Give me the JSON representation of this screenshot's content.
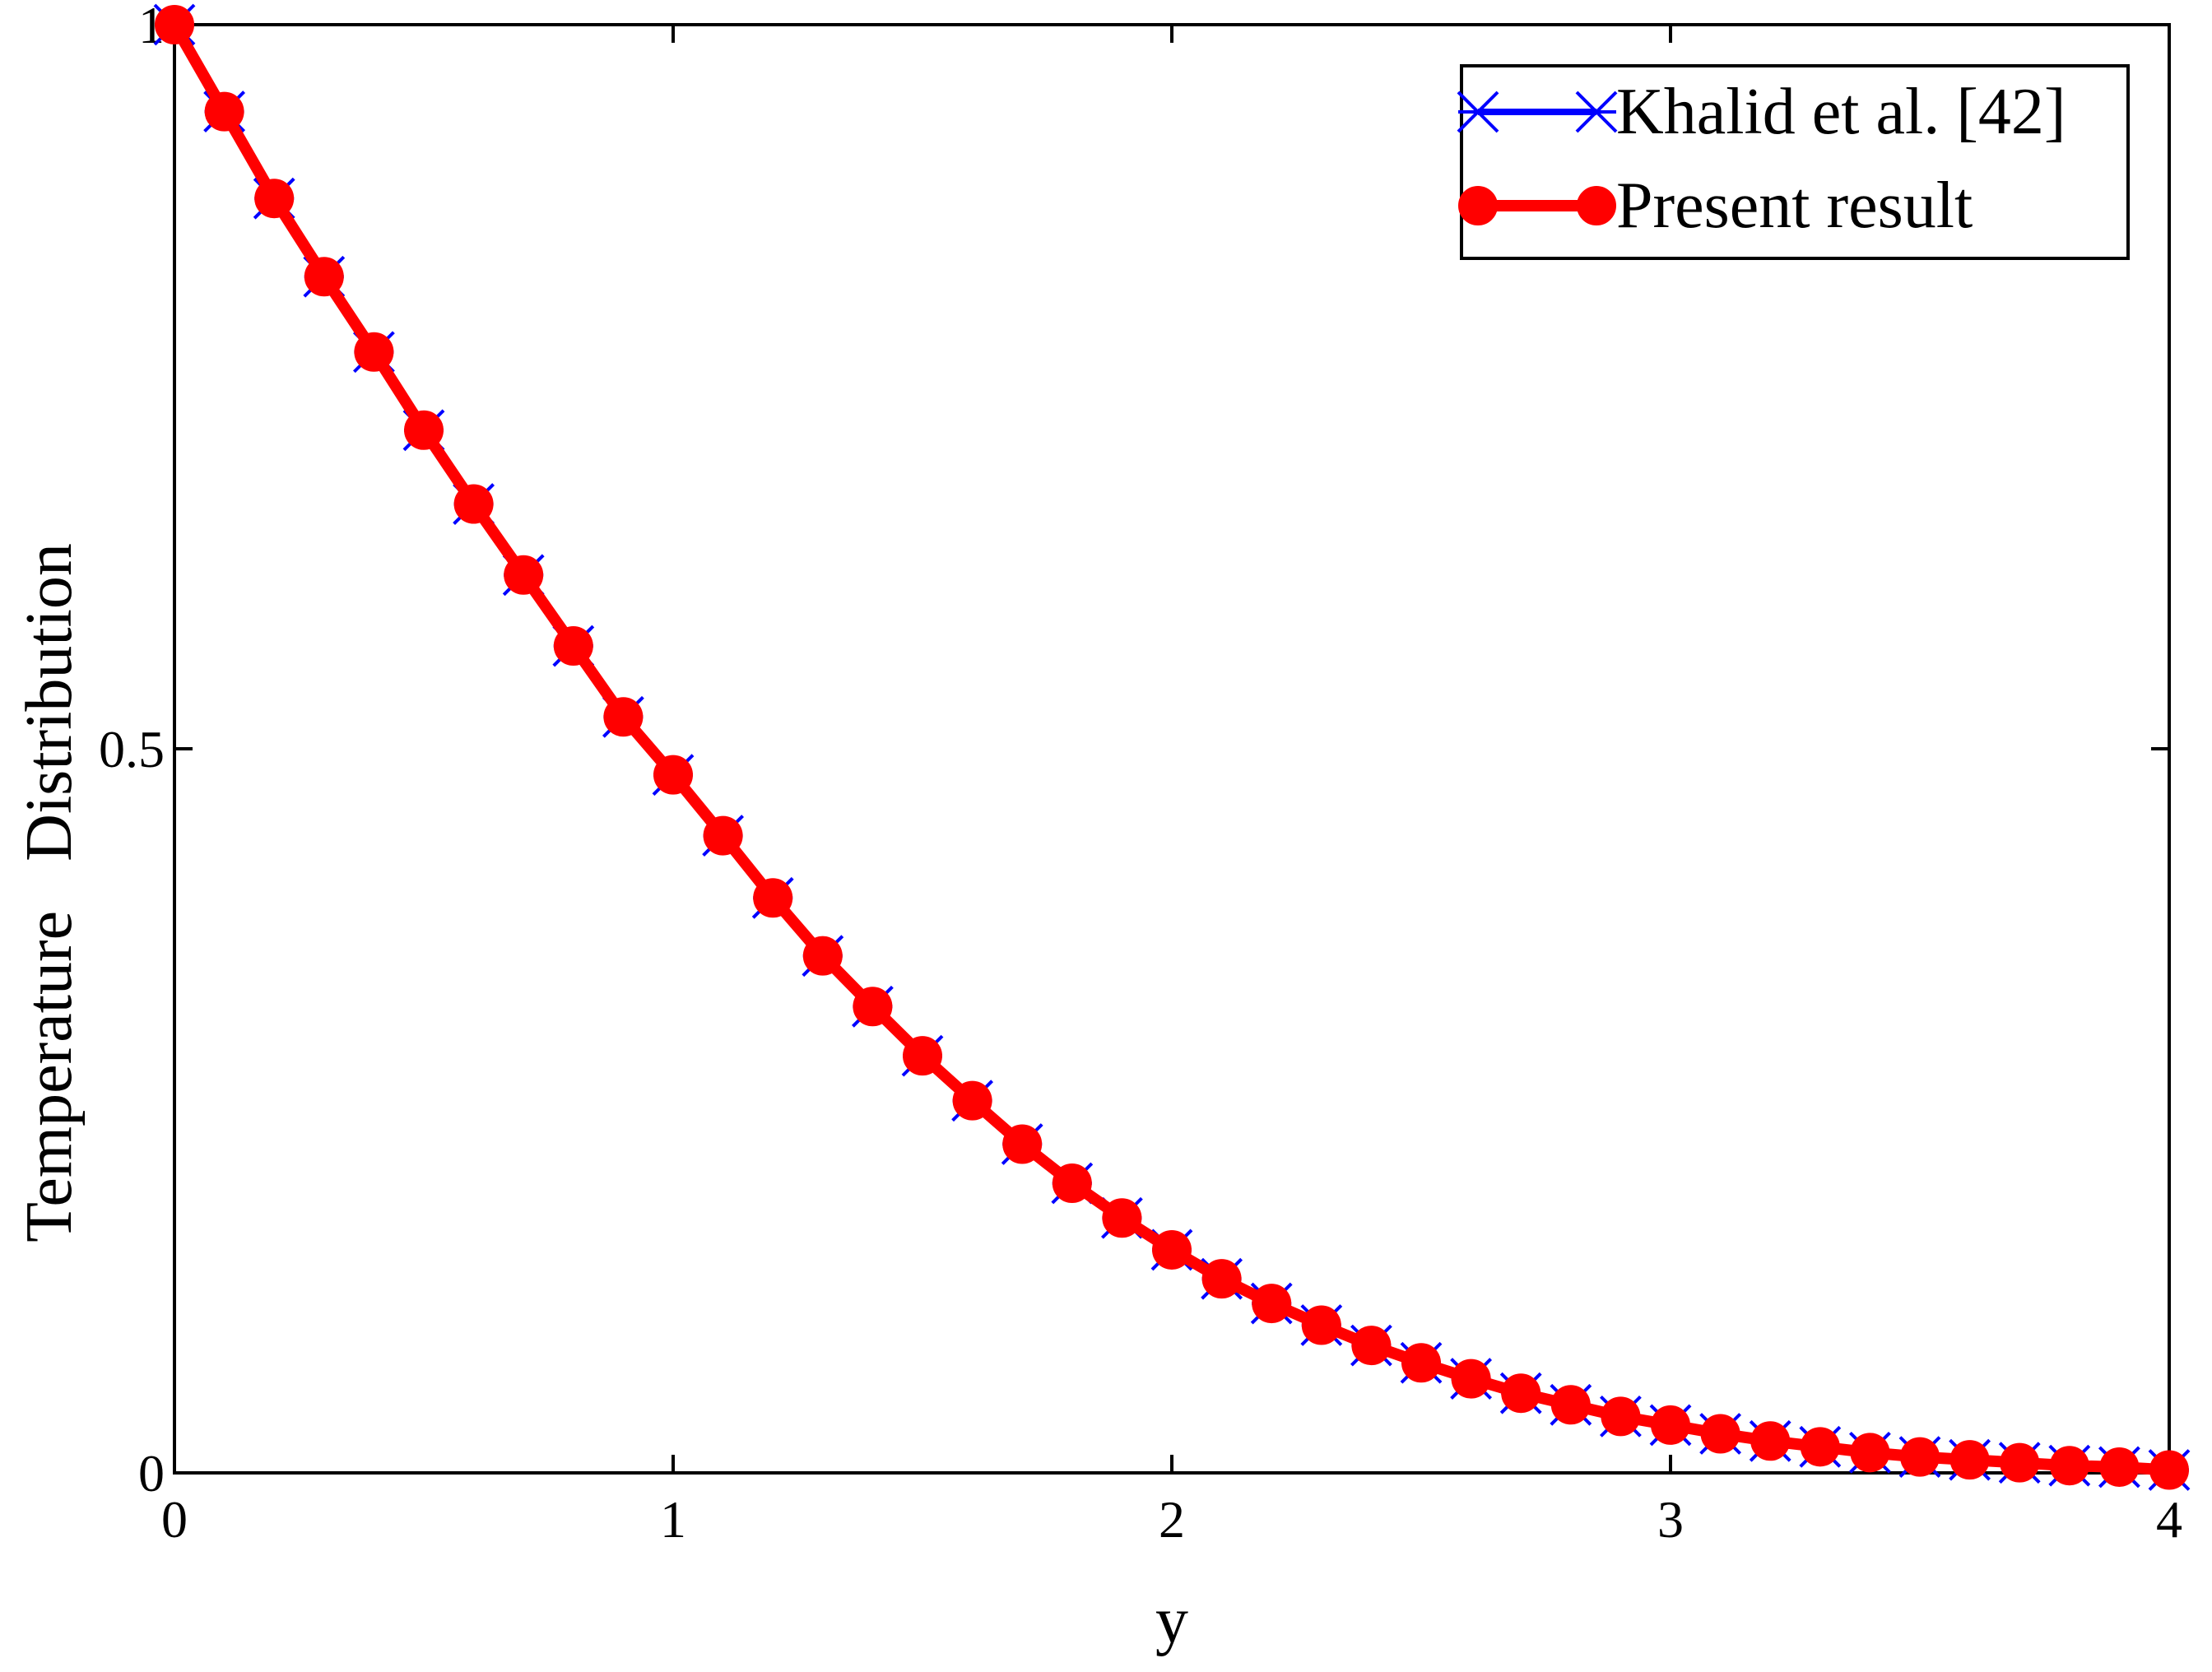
{
  "chart_data": {
    "type": "line",
    "title": "",
    "xlabel": "y",
    "ylabel": "Temperature   Distribution",
    "xlim": [
      0,
      4
    ],
    "ylim": [
      0,
      1
    ],
    "xticks": [
      0,
      1,
      2,
      3,
      4
    ],
    "xtick_labels": [
      "0",
      "1",
      "2",
      "3",
      "4"
    ],
    "yticks": [
      0,
      0.5,
      1
    ],
    "ytick_labels": [
      "0",
      "0.5",
      "1"
    ],
    "grid": false,
    "legend_position": "top-right",
    "x": [
      0,
      0.1,
      0.2,
      0.3,
      0.4,
      0.5,
      0.6,
      0.7,
      0.8,
      0.9,
      1.0,
      1.1,
      1.2,
      1.3,
      1.4,
      1.5,
      1.6,
      1.7,
      1.8,
      1.9,
      2.0,
      2.1,
      2.2,
      2.3,
      2.4,
      2.5,
      2.6,
      2.7,
      2.8,
      2.9,
      3.0,
      3.1,
      3.2,
      3.3,
      3.4,
      3.5,
      3.6,
      3.7,
      3.8,
      3.9,
      4.0
    ],
    "series": [
      {
        "name": "Khalid et al. [42]",
        "color": "#0000ff",
        "marker": "x",
        "values": [
          1.0,
          0.94,
          0.88,
          0.826,
          0.774,
          0.72,
          0.669,
          0.62,
          0.571,
          0.522,
          0.482,
          0.44,
          0.397,
          0.357,
          0.322,
          0.288,
          0.257,
          0.227,
          0.2,
          0.176,
          0.154,
          0.134,
          0.117,
          0.102,
          0.088,
          0.076,
          0.065,
          0.055,
          0.047,
          0.039,
          0.033,
          0.027,
          0.022,
          0.018,
          0.014,
          0.011,
          0.009,
          0.007,
          0.005,
          0.004,
          0.002
        ]
      },
      {
        "name": "Present result",
        "color": "#ff0000",
        "marker": "circle",
        "values": [
          1.0,
          0.94,
          0.88,
          0.826,
          0.774,
          0.72,
          0.669,
          0.62,
          0.571,
          0.522,
          0.482,
          0.44,
          0.397,
          0.357,
          0.322,
          0.288,
          0.257,
          0.227,
          0.2,
          0.176,
          0.154,
          0.134,
          0.117,
          0.102,
          0.088,
          0.076,
          0.065,
          0.055,
          0.047,
          0.039,
          0.033,
          0.027,
          0.022,
          0.018,
          0.014,
          0.011,
          0.009,
          0.007,
          0.005,
          0.004,
          0.002
        ]
      }
    ]
  }
}
